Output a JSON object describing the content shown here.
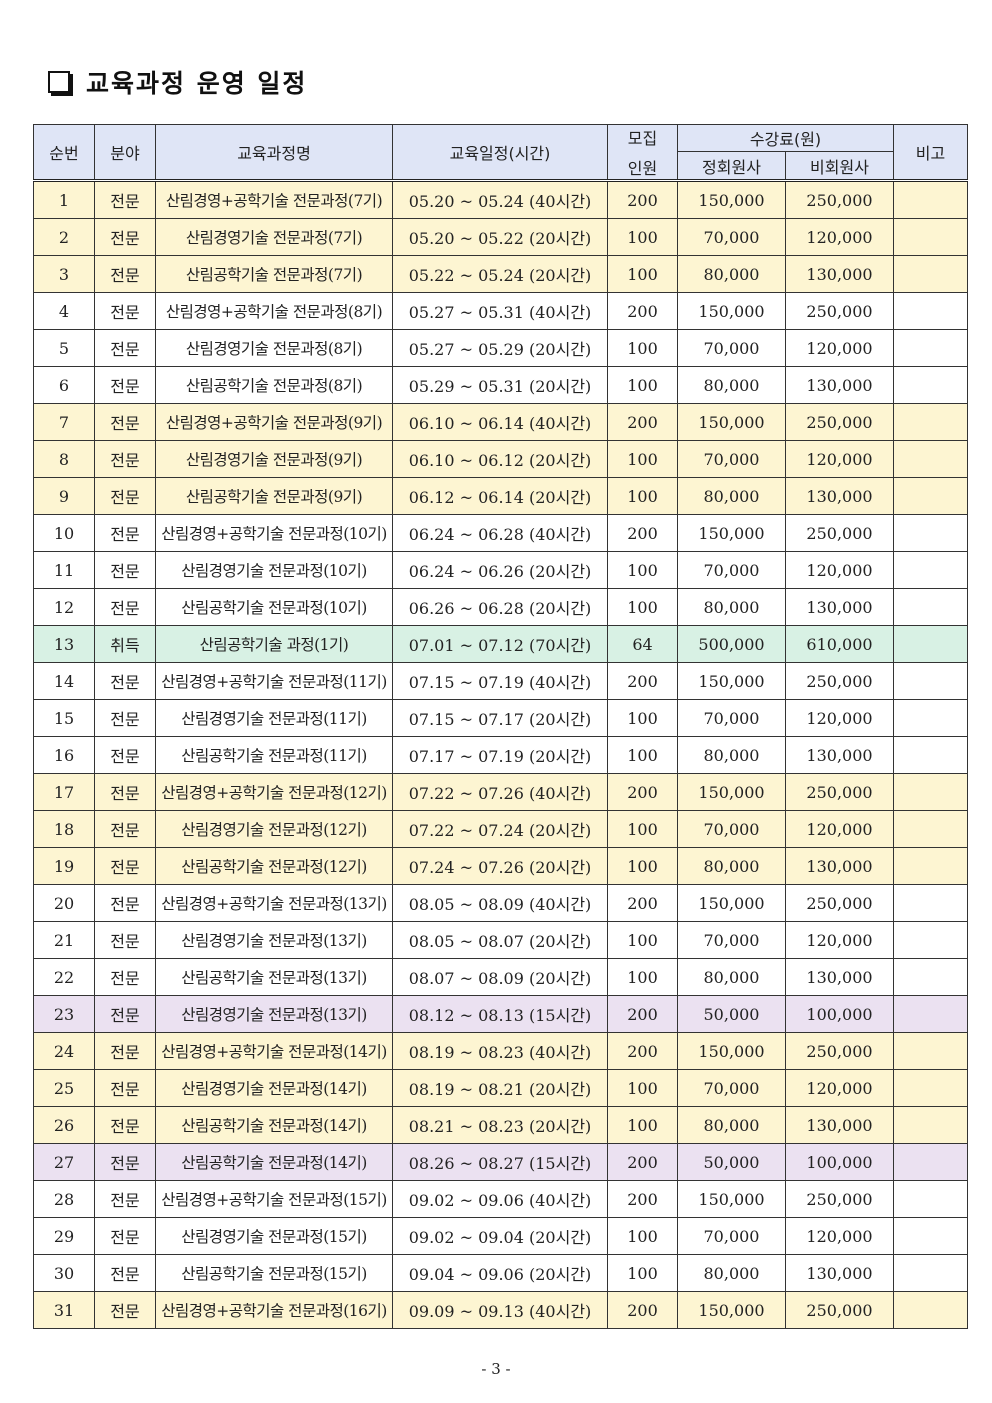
{
  "title": "교육과정 운영 일정",
  "table": {
    "headers": {
      "no": "순번",
      "field": "분야",
      "course": "교육과정명",
      "schedule": "교육일정(시간)",
      "capacity": "모집\n인원",
      "capacity_line1": "모집",
      "capacity_line2": "인원",
      "fee": "수강료(원)",
      "member": "정회원사",
      "nonmember": "비회원사",
      "note": "비고"
    },
    "row_colors": {
      "yellow": "#fdf5d2",
      "green": "#d8f1e4",
      "purple": "#ebe1f1",
      "white": "#ffffff",
      "header": "#dfe5f6"
    },
    "rows": [
      {
        "no": "1",
        "field": "전문",
        "course": "산림경영+공학기술 전문과정(7기)",
        "schedule": "05.20 ~ 05.24 (40시간)",
        "capacity": "200",
        "member": "150,000",
        "nonmember": "250,000",
        "note": "",
        "color": "yellow"
      },
      {
        "no": "2",
        "field": "전문",
        "course": "산림경영기술 전문과정(7기)",
        "schedule": "05.20 ~ 05.22 (20시간)",
        "capacity": "100",
        "member": "70,000",
        "nonmember": "120,000",
        "note": "",
        "color": "yellow"
      },
      {
        "no": "3",
        "field": "전문",
        "course": "산림공학기술 전문과정(7기)",
        "schedule": "05.22 ~ 05.24 (20시간)",
        "capacity": "100",
        "member": "80,000",
        "nonmember": "130,000",
        "note": "",
        "color": "yellow"
      },
      {
        "no": "4",
        "field": "전문",
        "course": "산림경영+공학기술 전문과정(8기)",
        "schedule": "05.27 ~ 05.31 (40시간)",
        "capacity": "200",
        "member": "150,000",
        "nonmember": "250,000",
        "note": "",
        "color": "white"
      },
      {
        "no": "5",
        "field": "전문",
        "course": "산림경영기술 전문과정(8기)",
        "schedule": "05.27 ~ 05.29 (20시간)",
        "capacity": "100",
        "member": "70,000",
        "nonmember": "120,000",
        "note": "",
        "color": "white"
      },
      {
        "no": "6",
        "field": "전문",
        "course": "산림공학기술 전문과정(8기)",
        "schedule": "05.29 ~ 05.31 (20시간)",
        "capacity": "100",
        "member": "80,000",
        "nonmember": "130,000",
        "note": "",
        "color": "white"
      },
      {
        "no": "7",
        "field": "전문",
        "course": "산림경영+공학기술 전문과정(9기)",
        "schedule": "06.10 ~ 06.14 (40시간)",
        "capacity": "200",
        "member": "150,000",
        "nonmember": "250,000",
        "note": "",
        "color": "yellow"
      },
      {
        "no": "8",
        "field": "전문",
        "course": "산림경영기술 전문과정(9기)",
        "schedule": "06.10 ~ 06.12 (20시간)",
        "capacity": "100",
        "member": "70,000",
        "nonmember": "120,000",
        "note": "",
        "color": "yellow"
      },
      {
        "no": "9",
        "field": "전문",
        "course": "산림공학기술 전문과정(9기)",
        "schedule": "06.12 ~ 06.14 (20시간)",
        "capacity": "100",
        "member": "80,000",
        "nonmember": "130,000",
        "note": "",
        "color": "yellow"
      },
      {
        "no": "10",
        "field": "전문",
        "course": "산림경영+공학기술 전문과정(10기)",
        "schedule": "06.24 ~ 06.28 (40시간)",
        "capacity": "200",
        "member": "150,000",
        "nonmember": "250,000",
        "note": "",
        "color": "white"
      },
      {
        "no": "11",
        "field": "전문",
        "course": "산림경영기술 전문과정(10기)",
        "schedule": "06.24 ~ 06.26 (20시간)",
        "capacity": "100",
        "member": "70,000",
        "nonmember": "120,000",
        "note": "",
        "color": "white"
      },
      {
        "no": "12",
        "field": "전문",
        "course": "산림공학기술 전문과정(10기)",
        "schedule": "06.26 ~ 06.28 (20시간)",
        "capacity": "100",
        "member": "80,000",
        "nonmember": "130,000",
        "note": "",
        "color": "white"
      },
      {
        "no": "13",
        "field": "취득",
        "course": "산림공학기술 과정(1기)",
        "schedule": "07.01 ~ 07.12 (70시간)",
        "capacity": "64",
        "member": "500,000",
        "nonmember": "610,000",
        "note": "",
        "color": "green"
      },
      {
        "no": "14",
        "field": "전문",
        "course": "산림경영+공학기술 전문과정(11기)",
        "schedule": "07.15 ~ 07.19 (40시간)",
        "capacity": "200",
        "member": "150,000",
        "nonmember": "250,000",
        "note": "",
        "color": "white"
      },
      {
        "no": "15",
        "field": "전문",
        "course": "산림경영기술 전문과정(11기)",
        "schedule": "07.15 ~ 07.17 (20시간)",
        "capacity": "100",
        "member": "70,000",
        "nonmember": "120,000",
        "note": "",
        "color": "white"
      },
      {
        "no": "16",
        "field": "전문",
        "course": "산림공학기술 전문과정(11기)",
        "schedule": "07.17 ~ 07.19 (20시간)",
        "capacity": "100",
        "member": "80,000",
        "nonmember": "130,000",
        "note": "",
        "color": "white"
      },
      {
        "no": "17",
        "field": "전문",
        "course": "산림경영+공학기술 전문과정(12기)",
        "schedule": "07.22 ~ 07.26 (40시간)",
        "capacity": "200",
        "member": "150,000",
        "nonmember": "250,000",
        "note": "",
        "color": "yellow"
      },
      {
        "no": "18",
        "field": "전문",
        "course": "산림경영기술 전문과정(12기)",
        "schedule": "07.22 ~ 07.24 (20시간)",
        "capacity": "100",
        "member": "70,000",
        "nonmember": "120,000",
        "note": "",
        "color": "yellow"
      },
      {
        "no": "19",
        "field": "전문",
        "course": "산림공학기술 전문과정(12기)",
        "schedule": "07.24 ~ 07.26 (20시간)",
        "capacity": "100",
        "member": "80,000",
        "nonmember": "130,000",
        "note": "",
        "color": "yellow"
      },
      {
        "no": "20",
        "field": "전문",
        "course": "산림경영+공학기술 전문과정(13기)",
        "schedule": "08.05 ~ 08.09 (40시간)",
        "capacity": "200",
        "member": "150,000",
        "nonmember": "250,000",
        "note": "",
        "color": "white"
      },
      {
        "no": "21",
        "field": "전문",
        "course": "산림경영기술 전문과정(13기)",
        "schedule": "08.05 ~ 08.07 (20시간)",
        "capacity": "100",
        "member": "70,000",
        "nonmember": "120,000",
        "note": "",
        "color": "white"
      },
      {
        "no": "22",
        "field": "전문",
        "course": "산림공학기술 전문과정(13기)",
        "schedule": "08.07 ~ 08.09 (20시간)",
        "capacity": "100",
        "member": "80,000",
        "nonmember": "130,000",
        "note": "",
        "color": "white"
      },
      {
        "no": "23",
        "field": "전문",
        "course": "산림경영기술 전문과정(13기)",
        "schedule": "08.12 ~ 08.13 (15시간)",
        "capacity": "200",
        "member": "50,000",
        "nonmember": "100,000",
        "note": "",
        "color": "purple"
      },
      {
        "no": "24",
        "field": "전문",
        "course": "산림경영+공학기술 전문과정(14기)",
        "schedule": "08.19 ~ 08.23 (40시간)",
        "capacity": "200",
        "member": "150,000",
        "nonmember": "250,000",
        "note": "",
        "color": "yellow"
      },
      {
        "no": "25",
        "field": "전문",
        "course": "산림경영기술 전문과정(14기)",
        "schedule": "08.19 ~ 08.21 (20시간)",
        "capacity": "100",
        "member": "70,000",
        "nonmember": "120,000",
        "note": "",
        "color": "yellow"
      },
      {
        "no": "26",
        "field": "전문",
        "course": "산림공학기술 전문과정(14기)",
        "schedule": "08.21 ~ 08.23 (20시간)",
        "capacity": "100",
        "member": "80,000",
        "nonmember": "130,000",
        "note": "",
        "color": "yellow"
      },
      {
        "no": "27",
        "field": "전문",
        "course": "산림공학기술 전문과정(14기)",
        "schedule": "08.26 ~ 08.27 (15시간)",
        "capacity": "200",
        "member": "50,000",
        "nonmember": "100,000",
        "note": "",
        "color": "purple"
      },
      {
        "no": "28",
        "field": "전문",
        "course": "산림경영+공학기술 전문과정(15기)",
        "schedule": "09.02 ~ 09.06 (40시간)",
        "capacity": "200",
        "member": "150,000",
        "nonmember": "250,000",
        "note": "",
        "color": "white"
      },
      {
        "no": "29",
        "field": "전문",
        "course": "산림경영기술 전문과정(15기)",
        "schedule": "09.02 ~ 09.04 (20시간)",
        "capacity": "100",
        "member": "70,000",
        "nonmember": "120,000",
        "note": "",
        "color": "white"
      },
      {
        "no": "30",
        "field": "전문",
        "course": "산림공학기술 전문과정(15기)",
        "schedule": "09.04 ~ 09.06 (20시간)",
        "capacity": "100",
        "member": "80,000",
        "nonmember": "130,000",
        "note": "",
        "color": "white"
      },
      {
        "no": "31",
        "field": "전문",
        "course": "산림경영+공학기술 전문과정(16기)",
        "schedule": "09.09 ~ 09.13 (40시간)",
        "capacity": "200",
        "member": "150,000",
        "nonmember": "250,000",
        "note": "",
        "color": "yellow"
      }
    ]
  },
  "footer": {
    "page": "- 3 -"
  }
}
